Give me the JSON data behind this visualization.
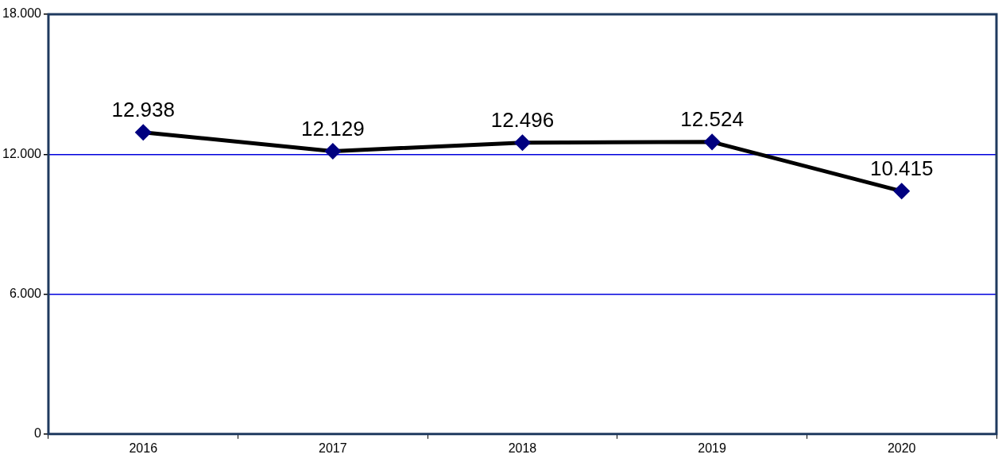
{
  "chart_data": {
    "type": "line",
    "categories": [
      "2016",
      "2017",
      "2018",
      "2019",
      "2020"
    ],
    "series": [
      {
        "color": "#000000",
        "values": [
          12938,
          12129,
          12496,
          12524,
          10415
        ],
        "value_labels": [
          "12.938",
          "12.129",
          "12.496",
          "12.524",
          "10.415"
        ]
      }
    ],
    "ylim": [
      0,
      18000
    ],
    "yticks": [
      0,
      {
        "value": 6000,
        "label": "6.000"
      },
      {
        "value": 12000,
        "label": "12.000"
      },
      {
        "value": 18000,
        "label": "18.000"
      }
    ],
    "grid": "y",
    "legend": false,
    "marker": "diamond",
    "line_style": "solid"
  }
}
